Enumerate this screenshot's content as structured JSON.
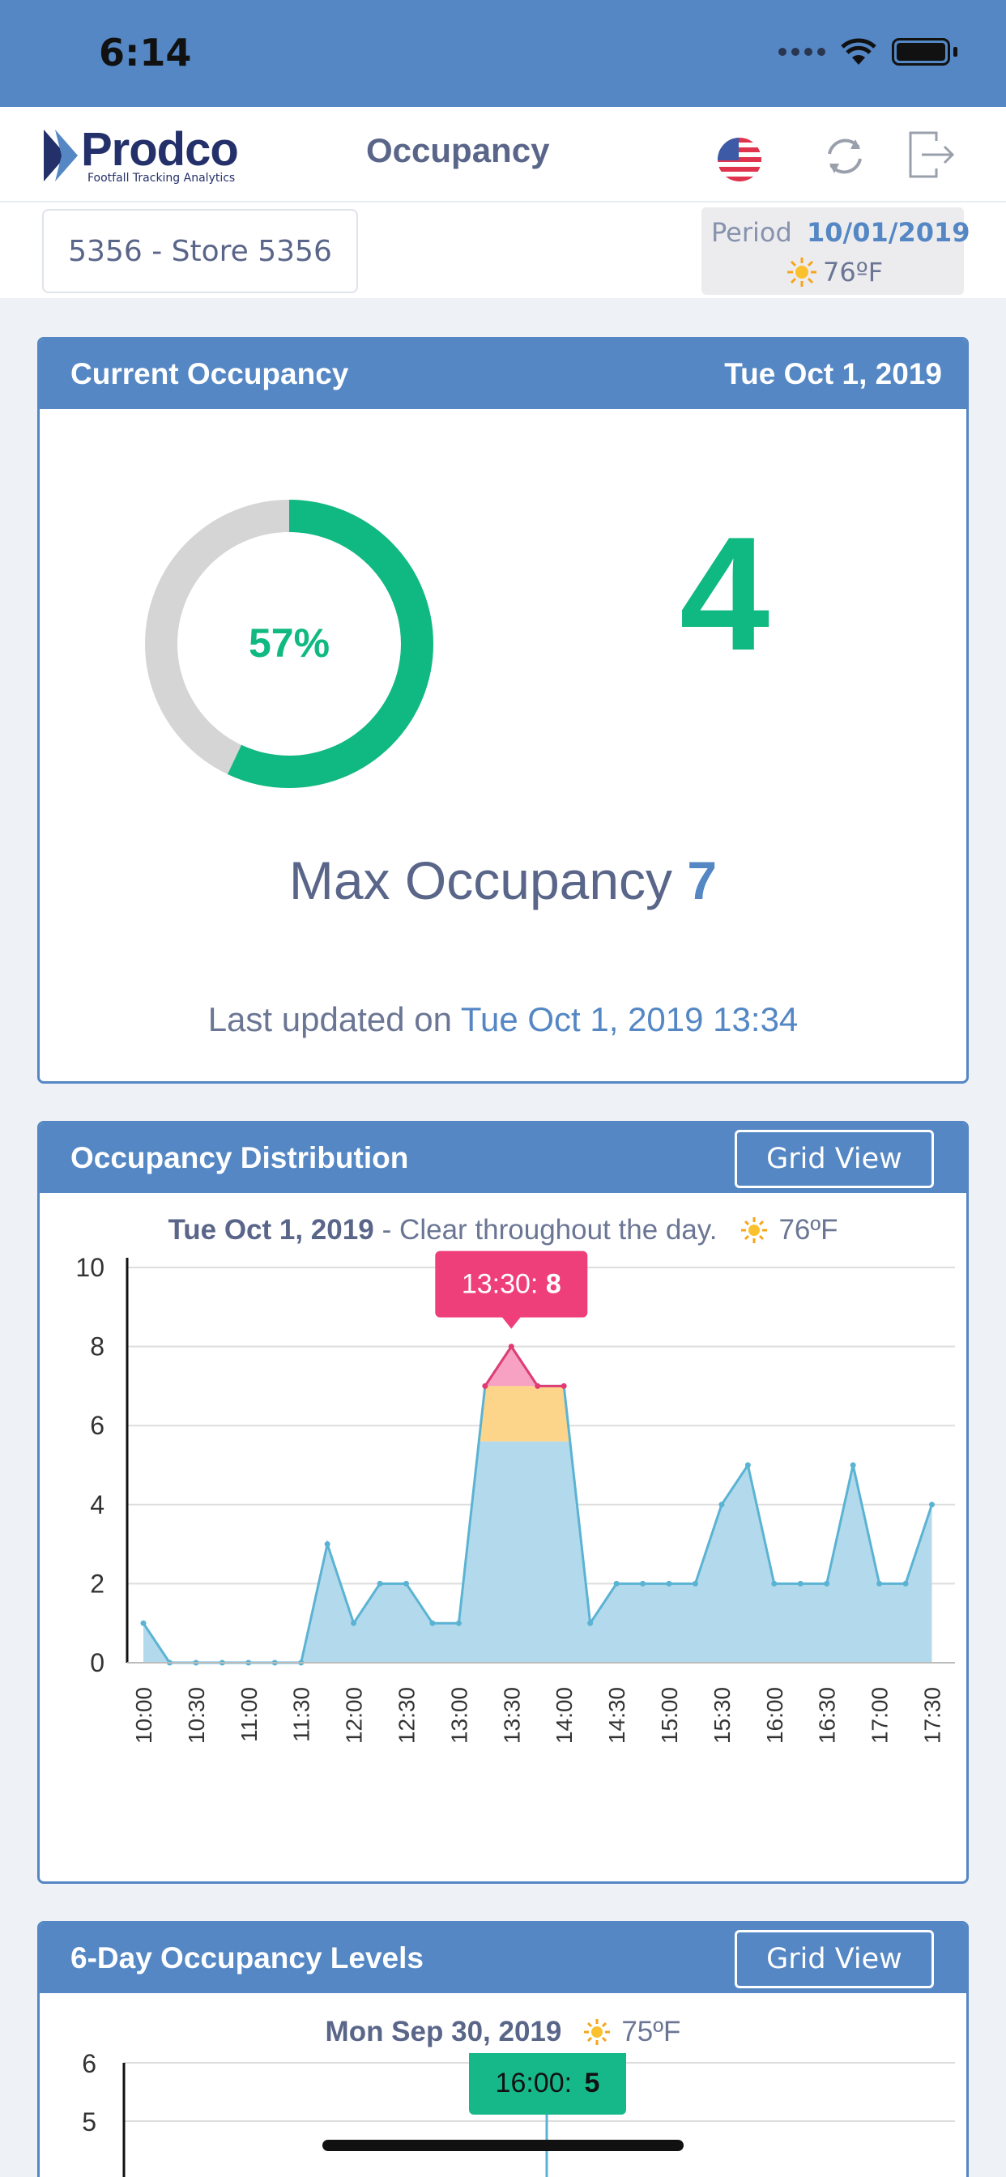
{
  "status_bar": {
    "time": "6:14"
  },
  "header": {
    "logo_text": "Prodco",
    "logo_tagline": "Footfall Tracking Analytics",
    "title": "Occupancy"
  },
  "subheader": {
    "store": "5356 - Store 5356",
    "period_label": "Period",
    "period_date": "10/01/2019",
    "temperature": "76ºF"
  },
  "current_card": {
    "title": "Current Occupancy",
    "date": "Tue Oct 1, 2019",
    "percent_label": "57%",
    "percent_value": 57,
    "current_count": "4",
    "max_label": "Max Occupancy",
    "max_value": "7",
    "updated_label": "Last updated on",
    "updated_value": "Tue Oct 1, 2019 13:34"
  },
  "distribution_card": {
    "title": "Occupancy Distribution",
    "grid_button": "Grid View",
    "subtitle_date": "Tue Oct 1, 2019",
    "subtitle_text": "- Clear throughout the day.",
    "temperature": "76ºF",
    "tooltip_label": "13:30:",
    "tooltip_value": "8"
  },
  "six_day_card": {
    "title": "6-Day Occupancy Levels",
    "grid_button": "Grid View",
    "subtitle_date": "Mon Sep 30, 2019",
    "temperature": "75ºF",
    "tooltip_label": "16:00:",
    "tooltip_value": "5"
  },
  "chart_data": [
    {
      "type": "area",
      "x": [
        "10:00",
        "10:15",
        "10:30",
        "10:45",
        "11:00",
        "11:15",
        "11:30",
        "11:45",
        "12:00",
        "12:15",
        "12:30",
        "12:45",
        "13:00",
        "13:15",
        "13:30",
        "13:45",
        "14:00",
        "14:15",
        "14:30",
        "14:45",
        "15:00",
        "15:15",
        "15:30",
        "15:45",
        "16:00",
        "16:15",
        "16:30",
        "16:45",
        "17:00",
        "17:15",
        "17:30"
      ],
      "tick_labels": [
        "10:00",
        "10:30",
        "11:00",
        "11:30",
        "12:00",
        "12:30",
        "13:00",
        "13:30",
        "14:00",
        "14:30",
        "15:00",
        "15:30",
        "16:00",
        "16:30",
        "17:00",
        "17:30"
      ],
      "values": [
        1,
        0,
        0,
        0,
        0,
        0,
        0,
        3,
        1,
        2,
        2,
        1,
        1,
        7,
        8,
        7,
        7,
        1,
        2,
        2,
        2,
        2,
        4,
        5,
        2,
        2,
        2,
        5,
        2,
        2,
        4
      ],
      "ylim": [
        0,
        10
      ],
      "yticks": [
        0,
        2,
        4,
        6,
        8,
        10
      ],
      "thresholds": {
        "warning": 5.6,
        "max": 7
      },
      "grid": true,
      "colors": {
        "fill": "#b3d9ec",
        "line": "#5bb3d3",
        "warning": "#fdd58a",
        "over": "#f7a1c3",
        "tooltip": "#ef3f7a"
      }
    },
    {
      "type": "area",
      "yticks": [
        5,
        6
      ],
      "grid": true,
      "colors": {
        "tooltip": "#16b88a"
      }
    }
  ]
}
